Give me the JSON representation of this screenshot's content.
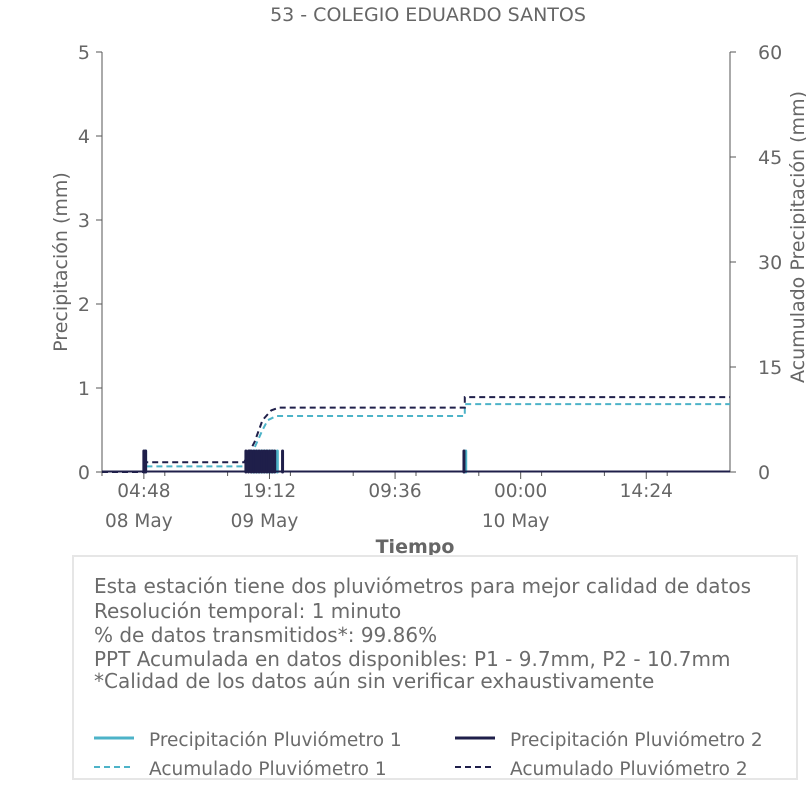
{
  "chart_data": {
    "type": "line",
    "title": "53 - COLEGIO EDUARDO SANTOS",
    "xlabel": "Tiempo",
    "ylabel": "Precipitación (mm)",
    "y2label": "Acumulado Precipitación (mm)",
    "ylim": [
      0,
      5
    ],
    "y2lim": [
      0,
      60
    ],
    "yticks": [
      "0",
      "1",
      "2",
      "3",
      "4",
      "5"
    ],
    "y2ticks": [
      "0",
      "15",
      "30",
      "45",
      "60"
    ],
    "xticks": [
      {
        "label": "04:48",
        "date": "08 May",
        "t": 4.8
      },
      {
        "label": "19:12",
        "date": "09 May",
        "t": 19.2
      },
      {
        "label": "09:36",
        "date": "",
        "t": 33.6
      },
      {
        "label": "00:00",
        "date": "10 May",
        "t": 48.0
      },
      {
        "label": "14:24",
        "date": "",
        "t": 62.4
      }
    ],
    "xlim_hours": [
      0,
      72
    ],
    "grid": false,
    "series": [
      {
        "name": "Precipitación Pluviómetro 1",
        "style": "solid",
        "color": "#4db3c8",
        "axis": "left",
        "events": [
          {
            "t": 5.0,
            "v": 0.25
          },
          {
            "t": 17.2,
            "v": 0.25
          },
          {
            "t": 17.5,
            "v": 0.25
          },
          {
            "t": 17.8,
            "v": 0.25
          },
          {
            "t": 18.1,
            "v": 0.25
          },
          {
            "t": 18.4,
            "v": 0.25
          },
          {
            "t": 18.7,
            "v": 0.25
          },
          {
            "t": 19.0,
            "v": 0.25
          },
          {
            "t": 19.3,
            "v": 0.25
          },
          {
            "t": 19.6,
            "v": 0.25
          },
          {
            "t": 20.1,
            "v": 0.25
          },
          {
            "t": 41.7,
            "v": 0.25
          }
        ]
      },
      {
        "name": "Precipitación Pluviómetro 2",
        "style": "solid",
        "color": "#1f1f4a",
        "axis": "left",
        "events": [
          {
            "t": 4.8,
            "v": 0.25
          },
          {
            "t": 5.0,
            "v": 0.25
          },
          {
            "t": 16.5,
            "v": 0.25
          },
          {
            "t": 16.8,
            "v": 0.25
          },
          {
            "t": 17.1,
            "v": 0.25
          },
          {
            "t": 17.4,
            "v": 0.25
          },
          {
            "t": 17.7,
            "v": 0.25
          },
          {
            "t": 18.0,
            "v": 0.25
          },
          {
            "t": 18.3,
            "v": 0.25
          },
          {
            "t": 18.6,
            "v": 0.25
          },
          {
            "t": 18.9,
            "v": 0.25
          },
          {
            "t": 19.2,
            "v": 0.25
          },
          {
            "t": 19.5,
            "v": 0.25
          },
          {
            "t": 19.8,
            "v": 0.25
          },
          {
            "t": 20.7,
            "v": 0.25
          },
          {
            "t": 41.5,
            "v": 0.25
          }
        ]
      },
      {
        "name": "Acumulado Pluviómetro 1",
        "style": "dashed",
        "color": "#4db3c8",
        "axis": "right",
        "points": [
          [
            0,
            0
          ],
          [
            4.9,
            0
          ],
          [
            4.9,
            0.8
          ],
          [
            16.3,
            0.8
          ],
          [
            17.5,
            3.5
          ],
          [
            18.4,
            6.0
          ],
          [
            19.0,
            7.4
          ],
          [
            20.0,
            8.0
          ],
          [
            41.6,
            8.0
          ],
          [
            41.6,
            9.7
          ],
          [
            72,
            9.7
          ]
        ]
      },
      {
        "name": "Acumulado Pluviómetro 2",
        "style": "dashed",
        "color": "#1f1f4a",
        "axis": "right",
        "points": [
          [
            0,
            0
          ],
          [
            4.8,
            0
          ],
          [
            4.8,
            1.4
          ],
          [
            16.3,
            1.4
          ],
          [
            17.5,
            4.3
          ],
          [
            18.4,
            7.4
          ],
          [
            19.4,
            8.8
          ],
          [
            20.3,
            9.2
          ],
          [
            41.6,
            9.2
          ],
          [
            41.6,
            10.7
          ],
          [
            72,
            10.7
          ]
        ]
      }
    ]
  },
  "info": {
    "lines": [
      "Esta estación tiene dos pluviómetros para mejor calidad de datos",
      "Resolución temporal: 1 minuto",
      "% de datos transmitidos*: 99.86%",
      "PPT Acumulada en datos disponibles: P1 - 9.7mm, P2 - 10.7mm",
      "*Calidad de los datos aún sin verificar exhaustivamente"
    ]
  },
  "legend": {
    "items": [
      "Precipitación Pluviómetro 1",
      "Precipitación Pluviómetro 2",
      "Acumulado Pluviómetro 1",
      "Acumulado Pluviómetro 2"
    ]
  }
}
